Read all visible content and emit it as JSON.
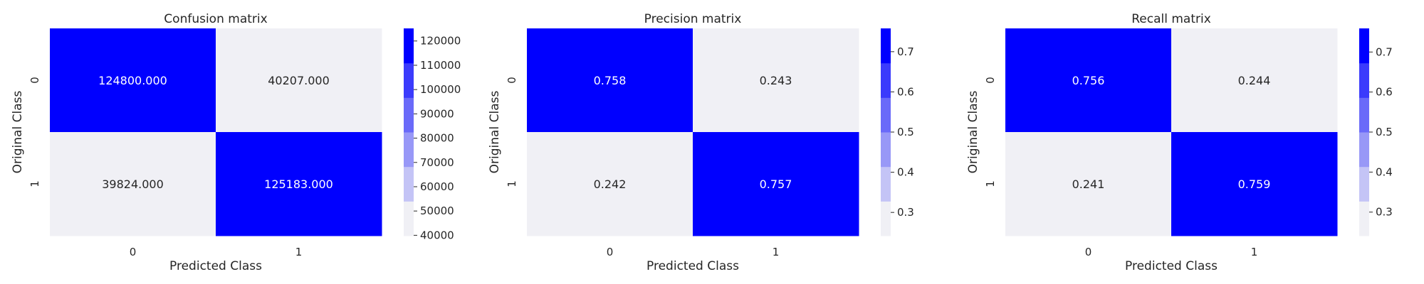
{
  "chart_data": [
    {
      "type": "heatmap",
      "title": "Confusion matrix",
      "xlabel": "Predicted Class",
      "ylabel": "Original Class",
      "x_categories": [
        "0",
        "1"
      ],
      "y_categories": [
        "0",
        "1"
      ],
      "values": [
        [
          124800.0,
          40207.0
        ],
        [
          39824.0,
          125183.0
        ]
      ],
      "cell_labels": [
        [
          "124800.000",
          "40207.000"
        ],
        [
          "39824.000",
          "125183.000"
        ]
      ],
      "colorbar": {
        "range": [
          39824.0,
          125183.0
        ],
        "ticks": [
          40000,
          50000,
          60000,
          70000,
          80000,
          90000,
          100000,
          110000,
          120000
        ],
        "tick_labels": [
          "40000",
          "50000",
          "60000",
          "70000",
          "80000",
          "90000",
          "100000",
          "110000",
          "120000"
        ]
      }
    },
    {
      "type": "heatmap",
      "title": "Precision matrix",
      "xlabel": "Predicted Class",
      "ylabel": "Original Class",
      "x_categories": [
        "0",
        "1"
      ],
      "y_categories": [
        "0",
        "1"
      ],
      "values": [
        [
          0.758,
          0.243
        ],
        [
          0.242,
          0.757
        ]
      ],
      "cell_labels": [
        [
          "0.758",
          "0.243"
        ],
        [
          "0.242",
          "0.757"
        ]
      ],
      "colorbar": {
        "range": [
          0.242,
          0.758
        ],
        "ticks": [
          0.3,
          0.4,
          0.5,
          0.6,
          0.7
        ],
        "tick_labels": [
          "0.3",
          "0.4",
          "0.5",
          "0.6",
          "0.7"
        ]
      }
    },
    {
      "type": "heatmap",
      "title": "Recall matrix",
      "xlabel": "Predicted Class",
      "ylabel": "Original Class",
      "x_categories": [
        "0",
        "1"
      ],
      "y_categories": [
        "0",
        "1"
      ],
      "values": [
        [
          0.756,
          0.244
        ],
        [
          0.241,
          0.759
        ]
      ],
      "cell_labels": [
        [
          "0.756",
          "0.244"
        ],
        [
          "0.241",
          "0.759"
        ]
      ],
      "colorbar": {
        "range": [
          0.241,
          0.759
        ],
        "ticks": [
          0.3,
          0.4,
          0.5,
          0.6,
          0.7
        ],
        "tick_labels": [
          "0.3",
          "0.4",
          "0.5",
          "0.6",
          "0.7"
        ]
      }
    }
  ],
  "colormap": {
    "name": "light-to-blue-discrete",
    "steps": [
      "#f0f0f5",
      "#c4c4f6",
      "#9898f7",
      "#6a6af9",
      "#3b3bfc",
      "#0000ff"
    ],
    "high_text_color": "#ffffff",
    "low_text_color": "#262626"
  }
}
